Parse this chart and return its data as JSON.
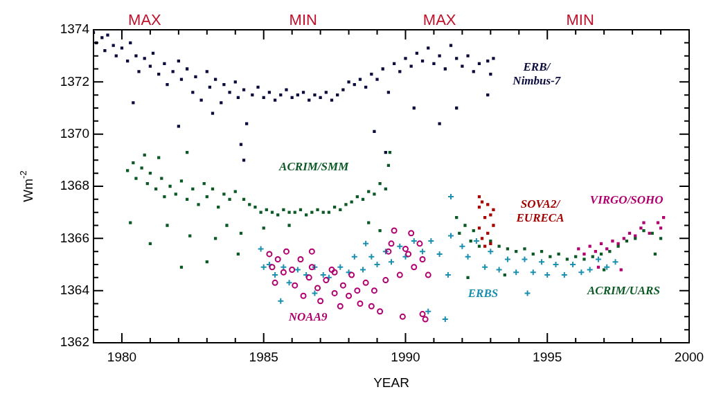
{
  "chart_data": {
    "type": "scatter",
    "xlabel": "YEAR",
    "ylabel": "Wm$^{-2}$",
    "xlim": [
      1979,
      2000
    ],
    "ylim": [
      1362,
      1374
    ],
    "xticks": [
      {
        "value": 1979,
        "label": null
      },
      1980,
      {
        "value": 1981,
        "label": null
      },
      {
        "value": 1982,
        "label": null
      },
      {
        "value": 1983,
        "label": null
      },
      {
        "value": 1984,
        "label": null
      },
      1985,
      {
        "value": 1986,
        "label": null
      },
      {
        "value": 1987,
        "label": null
      },
      {
        "value": 1988,
        "label": null
      },
      {
        "value": 1989,
        "label": null
      },
      1990,
      {
        "value": 1991,
        "label": null
      },
      {
        "value": 1992,
        "label": null
      },
      {
        "value": 1993,
        "label": null
      },
      {
        "value": 1994,
        "label": null
      },
      1995,
      {
        "value": 1996,
        "label": null
      },
      {
        "value": 1997,
        "label": null
      },
      {
        "value": 1998,
        "label": null
      },
      {
        "value": 1999,
        "label": null
      },
      2000
    ],
    "yticks": [
      1362,
      {
        "value": 1362.5,
        "label": null
      },
      {
        "value": 1363,
        "label": null
      },
      {
        "value": 1363.5,
        "label": null
      },
      1364,
      {
        "value": 1364.5,
        "label": null
      },
      {
        "value": 1365,
        "label": null
      },
      {
        "value": 1365.5,
        "label": null
      },
      1366,
      {
        "value": 1366.5,
        "label": null
      },
      {
        "value": 1367,
        "label": null
      },
      {
        "value": 1367.5,
        "label": null
      },
      1368,
      {
        "value": 1368.5,
        "label": null
      },
      {
        "value": 1369,
        "label": null
      },
      {
        "value": 1369.5,
        "label": null
      },
      1370,
      {
        "value": 1370.5,
        "label": null
      },
      {
        "value": 1371,
        "label": null
      },
      {
        "value": 1371.5,
        "label": null
      },
      1372,
      {
        "value": 1372.5,
        "label": null
      },
      {
        "value": 1373,
        "label": null
      },
      {
        "value": 1373.5,
        "label": null
      },
      1374
    ],
    "grid": false,
    "legend": false,
    "series": [
      {
        "name": "ERB/\nNimbus-7",
        "color": "#0a0a3c",
        "marker": "square",
        "x": [
          1979.0,
          1979.1,
          1979.3,
          1979.4,
          1979.5,
          1979.7,
          1979.8,
          1980.0,
          1980.2,
          1980.3,
          1980.5,
          1980.6,
          1980.8,
          1981.0,
          1981.1,
          1981.3,
          1981.5,
          1981.6,
          1981.8,
          1982.0,
          1982.1,
          1982.3,
          1982.5,
          1982.6,
          1982.8,
          1983.0,
          1983.1,
          1983.3,
          1983.5,
          1983.6,
          1983.8,
          1984.0,
          1984.1,
          1984.3,
          1984.4,
          1984.6,
          1984.8,
          1985.0,
          1985.2,
          1985.4,
          1985.6,
          1985.8,
          1986.0,
          1986.2,
          1986.4,
          1986.6,
          1986.8,
          1987.0,
          1987.2,
          1987.4,
          1987.6,
          1987.8,
          1988.0,
          1988.2,
          1988.4,
          1988.6,
          1988.8,
          1989.0,
          1989.2,
          1989.4,
          1989.6,
          1989.8,
          1990.0,
          1990.2,
          1990.4,
          1990.6,
          1990.8,
          1991.0,
          1991.2,
          1991.4,
          1991.6,
          1991.8,
          1992.0,
          1992.2,
          1992.4,
          1992.6,
          1992.9,
          1993.0,
          1993.1,
          1980.4,
          1982.0,
          1983.2,
          1984.2,
          1984.3,
          1988.9,
          1989.3,
          1990.3,
          1991.2,
          1991.8,
          1992.9
        ],
        "values": [
          1373.9,
          1373.5,
          1373.7,
          1373.2,
          1373.8,
          1373.4,
          1373.0,
          1373.3,
          1372.8,
          1373.5,
          1373.0,
          1372.4,
          1372.9,
          1372.6,
          1373.1,
          1372.3,
          1372.7,
          1371.9,
          1372.4,
          1372.8,
          1372.1,
          1372.5,
          1371.6,
          1372.2,
          1371.3,
          1372.4,
          1371.8,
          1372.1,
          1371.2,
          1371.9,
          1371.6,
          1372.0,
          1371.4,
          1371.7,
          1370.4,
          1371.5,
          1371.8,
          1371.4,
          1371.6,
          1371.3,
          1371.5,
          1371.7,
          1371.4,
          1371.5,
          1371.6,
          1371.3,
          1371.5,
          1371.4,
          1371.6,
          1371.3,
          1371.5,
          1371.7,
          1372.0,
          1371.9,
          1372.1,
          1371.8,
          1372.3,
          1372.1,
          1372.5,
          1371.6,
          1372.7,
          1372.4,
          1372.9,
          1372.6,
          1373.1,
          1372.8,
          1373.3,
          1372.7,
          1373.0,
          1372.5,
          1373.4,
          1372.9,
          1372.6,
          1373.0,
          1372.4,
          1372.7,
          1372.8,
          1372.3,
          1372.9,
          1371.2,
          1370.3,
          1370.8,
          1369.6,
          1369.0,
          1370.1,
          1369.3,
          1371.0,
          1370.4,
          1371.0,
          1371.5
        ]
      },
      {
        "name": "ACRIM/SMM",
        "color": "#0b5a25",
        "marker": "square",
        "x": [
          1980.2,
          1980.4,
          1980.5,
          1980.7,
          1980.9,
          1981.0,
          1981.2,
          1981.4,
          1981.5,
          1981.7,
          1981.9,
          1982.1,
          1982.3,
          1982.5,
          1982.7,
          1982.9,
          1983.0,
          1983.2,
          1983.4,
          1983.6,
          1983.8,
          1984.0,
          1980.3,
          1981.0,
          1981.6,
          1982.1,
          1982.4,
          1983.0,
          1983.3,
          1983.7,
          1981.3,
          1982.3,
          1980.8,
          1984.3,
          1984.5,
          1984.7,
          1984.9,
          1985.1,
          1985.3,
          1985.5,
          1985.7,
          1985.9,
          1986.1,
          1986.3,
          1986.5,
          1986.7,
          1986.9,
          1987.1,
          1987.3,
          1987.5,
          1987.7,
          1987.9,
          1988.1,
          1988.3,
          1988.5,
          1988.7,
          1988.9,
          1989.1,
          1989.3,
          1989.4,
          1989.45,
          1985.0,
          1985.9,
          1988.7,
          1989.1,
          1984.1,
          1984.2
        ],
        "values": [
          1368.6,
          1368.9,
          1368.3,
          1368.7,
          1368.1,
          1368.5,
          1367.9,
          1368.3,
          1367.6,
          1368.0,
          1367.7,
          1368.2,
          1367.5,
          1367.9,
          1367.3,
          1368.1,
          1367.6,
          1367.9,
          1367.2,
          1367.7,
          1367.5,
          1367.8,
          1366.6,
          1365.8,
          1366.5,
          1364.9,
          1366.1,
          1365.1,
          1366.0,
          1366.5,
          1369.1,
          1369.3,
          1369.2,
          1367.5,
          1367.3,
          1367.2,
          1367.0,
          1367.1,
          1367.0,
          1366.9,
          1367.1,
          1367.0,
          1367.0,
          1367.1,
          1366.9,
          1367.0,
          1367.1,
          1367.0,
          1367.0,
          1367.2,
          1367.1,
          1367.3,
          1367.4,
          1367.6,
          1367.5,
          1367.8,
          1367.7,
          1368.1,
          1367.9,
          1368.8,
          1369.3,
          1366.4,
          1366.5,
          1366.6,
          1366.3,
          1365.4,
          1366.2
        ]
      },
      {
        "name": "NOAA9",
        "color": "#b0006f",
        "marker": "circle",
        "x": [
          1985.2,
          1985.3,
          1985.5,
          1985.4,
          1985.7,
          1985.8,
          1986.0,
          1986.1,
          1986.3,
          1986.4,
          1986.6,
          1986.7,
          1986.9,
          1987.0,
          1987.2,
          1987.4,
          1987.5,
          1987.7,
          1987.8,
          1988.0,
          1988.1,
          1988.3,
          1988.4,
          1988.6,
          1988.8,
          1988.9,
          1989.1,
          1989.3,
          1989.4,
          1989.5,
          1989.6,
          1989.8,
          1990.0,
          1990.2,
          1990.3,
          1990.5,
          1990.6,
          1990.8,
          1990.6,
          1990.7,
          1989.9,
          1990.1,
          1986.7,
          1987.5
        ],
        "values": [
          1365.4,
          1364.9,
          1365.2,
          1364.3,
          1364.7,
          1365.5,
          1364.8,
          1364.2,
          1365.2,
          1363.8,
          1364.5,
          1364.9,
          1364.1,
          1363.6,
          1364.4,
          1364.8,
          1363.9,
          1363.4,
          1364.2,
          1363.8,
          1364.6,
          1364.0,
          1363.5,
          1364.3,
          1363.4,
          1364.0,
          1363.2,
          1364.4,
          1365.5,
          1365.8,
          1366.3,
          1364.6,
          1365.6,
          1366.2,
          1364.9,
          1365.8,
          1365.2,
          1364.6,
          1363.1,
          1362.9,
          1363.0,
          1365.4,
          1365.5,
          1364.7
        ]
      },
      {
        "name": "ERBS",
        "color": "#1a8fb0",
        "marker": "cross",
        "x": [
          1984.9,
          1985.0,
          1985.2,
          1985.4,
          1985.7,
          1985.9,
          1986.2,
          1986.5,
          1986.8,
          1987.1,
          1987.3,
          1987.7,
          1988.0,
          1988.2,
          1988.5,
          1988.8,
          1989.0,
          1989.3,
          1989.5,
          1989.8,
          1990.0,
          1990.3,
          1990.6,
          1990.9,
          1991.2,
          1991.6,
          1991.5,
          1992.0,
          1992.2,
          1992.5,
          1992.8,
          1993.0,
          1993.3,
          1993.6,
          1993.9,
          1994.2,
          1994.5,
          1994.8,
          1995.0,
          1995.3,
          1995.6,
          1995.9,
          1996.2,
          1996.5,
          1996.8,
          1997.1,
          1997.4,
          1990.8,
          1991.4,
          1985.6,
          1994.3,
          1991.6,
          1986.8,
          1988.6
        ],
        "values": [
          1365.6,
          1364.9,
          1365.0,
          1364.6,
          1364.9,
          1364.3,
          1364.8,
          1364.6,
          1364.9,
          1364.6,
          1364.5,
          1364.9,
          1364.7,
          1365.3,
          1364.8,
          1365.3,
          1365.0,
          1365.5,
          1365.1,
          1365.7,
          1365.3,
          1365.9,
          1365.5,
          1365.9,
          1365.4,
          1366.1,
          1364.6,
          1365.7,
          1365.3,
          1365.9,
          1364.9,
          1365.5,
          1364.8,
          1365.2,
          1364.7,
          1365.2,
          1364.7,
          1365.1,
          1364.6,
          1365.0,
          1364.6,
          1365.0,
          1364.7,
          1364.8,
          1365.2,
          1364.9,
          1365.1,
          1363.2,
          1362.9,
          1363.6,
          1363.9,
          1367.6,
          1363.9,
          1365.8
        ]
      },
      {
        "name": "SOVA2/\nEURECA",
        "color": "#a50000",
        "marker": "square",
        "x": [
          1992.6,
          1992.6,
          1992.7,
          1992.7,
          1992.8,
          1992.9,
          1992.9,
          1993.0,
          1993.0,
          1993.1,
          1993.1,
          1992.6,
          1992.8
        ],
        "values": [
          1367.2,
          1366.4,
          1367.4,
          1366.0,
          1366.8,
          1367.3,
          1366.2,
          1366.9,
          1365.8,
          1367.1,
          1366.5,
          1367.6,
          1365.7
        ]
      },
      {
        "name": "ACRIM/UARS",
        "color": "#0b5a25",
        "marker": "square",
        "x": [
          1991.8,
          1991.9,
          1992.1,
          1992.3,
          1992.4,
          1992.6,
          1993.0,
          1993.3,
          1993.6,
          1993.9,
          1994.2,
          1994.5,
          1994.8,
          1995.1,
          1995.4,
          1995.7,
          1996.0,
          1996.3,
          1996.6,
          1996.9,
          1997.2,
          1997.5,
          1997.8,
          1998.1,
          1998.4,
          1998.7,
          1999.0,
          1992.2,
          1993.5,
          1997.0,
          1998.8
        ],
        "values": [
          1366.8,
          1366.2,
          1366.5,
          1365.9,
          1366.3,
          1365.7,
          1365.9,
          1365.7,
          1365.6,
          1365.5,
          1365.6,
          1365.4,
          1365.5,
          1365.3,
          1365.4,
          1365.2,
          1365.3,
          1365.2,
          1365.3,
          1365.4,
          1365.5,
          1365.7,
          1365.9,
          1366.0,
          1366.3,
          1366.2,
          1366.0,
          1364.5,
          1364.6,
          1364.8,
          1365.4
        ]
      },
      {
        "name": "VIRGO/SOHO",
        "color": "#b0006f",
        "marker": "square",
        "x": [
          1996.1,
          1996.3,
          1996.5,
          1996.7,
          1996.9,
          1997.1,
          1997.3,
          1997.5,
          1997.7,
          1997.9,
          1998.1,
          1998.3,
          1998.4,
          1998.6,
          1998.9,
          1999.0,
          1999.1,
          1996.8,
          1997.6
        ],
        "values": [
          1365.6,
          1365.4,
          1365.7,
          1365.5,
          1365.8,
          1365.6,
          1365.9,
          1365.8,
          1366.0,
          1366.2,
          1366.1,
          1366.4,
          1366.6,
          1366.2,
          1366.6,
          1366.4,
          1366.8,
          1364.9,
          1364.8
        ]
      }
    ],
    "annotations": [
      "MAX",
      "MIN",
      "MAX",
      "MIN"
    ]
  }
}
